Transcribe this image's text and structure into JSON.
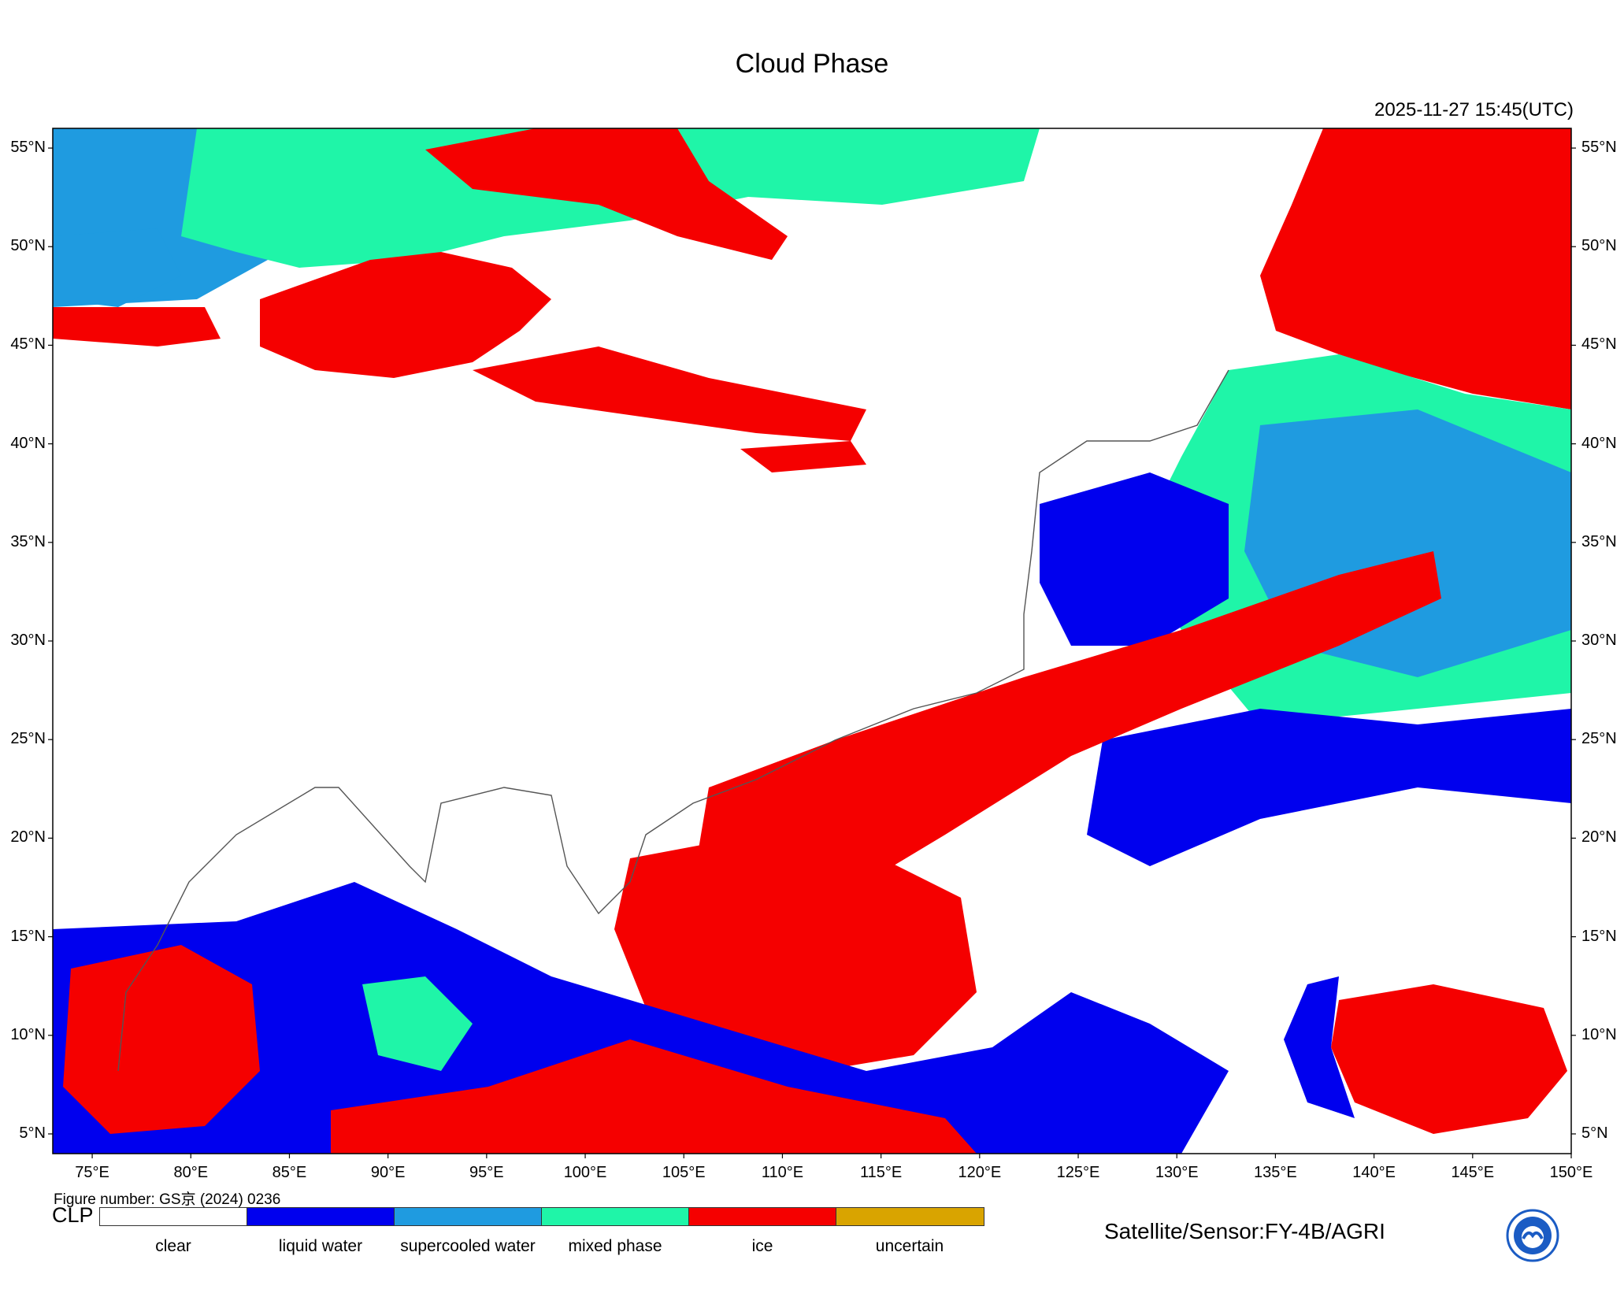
{
  "title": "Cloud Phase",
  "timestamp": "2025-11-27 15:45(UTC)",
  "map": {
    "lon_range": [
      73,
      150
    ],
    "lat_range": [
      4,
      56
    ],
    "lat_ticks": [
      "55°N",
      "50°N",
      "45°N",
      "40°N",
      "35°N",
      "30°N",
      "25°N",
      "20°N",
      "15°N",
      "10°N",
      "5°N"
    ],
    "lon_ticks": [
      "75°E",
      "80°E",
      "85°E",
      "90°E",
      "95°E",
      "100°E",
      "105°E",
      "110°E",
      "115°E",
      "120°E",
      "125°E",
      "130°E",
      "135°E",
      "140°E",
      "145°E",
      "150°E"
    ]
  },
  "figure_number": "Figure number: GS京 (2024) 0236",
  "legend": {
    "label": "CLP",
    "items": [
      {
        "name": "clear",
        "color": "#ffffff"
      },
      {
        "name": "liquid water",
        "color": "#0000ee"
      },
      {
        "name": "supercooled water",
        "color": "#1f9be0"
      },
      {
        "name": "mixed phase",
        "color": "#1ff5a8"
      },
      {
        "name": "ice",
        "color": "#f50000"
      },
      {
        "name": "uncertain",
        "color": "#d9a400"
      }
    ]
  },
  "sensor": "Satellite/Sensor:FY-4B/AGRI"
}
